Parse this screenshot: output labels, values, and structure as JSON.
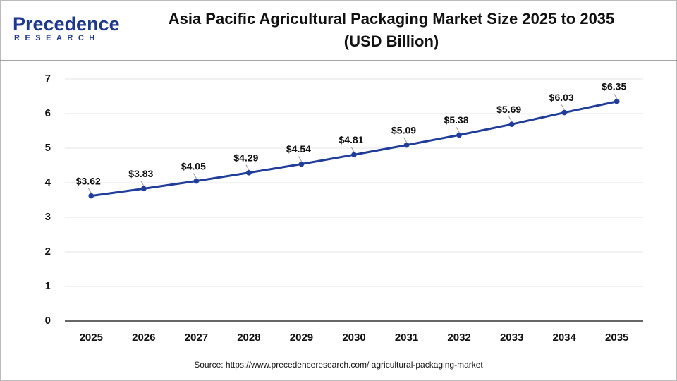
{
  "logo": {
    "name": "Precedence",
    "tagline": "RESEARCH"
  },
  "chart_data": {
    "type": "line",
    "title": [
      "Asia Pacific Agricultural Packaging Market Size 2025 to 2035",
      "(USD Billion)"
    ],
    "categories": [
      "2025",
      "2026",
      "2027",
      "2028",
      "2029",
      "2030",
      "2031",
      "2032",
      "2033",
      "2034",
      "2035"
    ],
    "series": [
      {
        "name": "Market Size",
        "color": "#1f3d99",
        "values": [
          3.62,
          3.83,
          4.05,
          4.29,
          4.54,
          4.81,
          5.09,
          5.38,
          5.69,
          6.03,
          6.35
        ],
        "value_labels": [
          "$3.62",
          "$3.83",
          "$4.05",
          "$4.29",
          "$4.54",
          "$4.81",
          "$5.09",
          "$5.38",
          "$5.69",
          "$6.03",
          "$6.35"
        ]
      }
    ],
    "ylim": [
      0,
      7
    ],
    "yticks": [
      0,
      1,
      2,
      3,
      4,
      5,
      6,
      7
    ],
    "grid": true
  },
  "source": "Source: https://www.precedenceresearch.com/ agricultural-packaging-market"
}
